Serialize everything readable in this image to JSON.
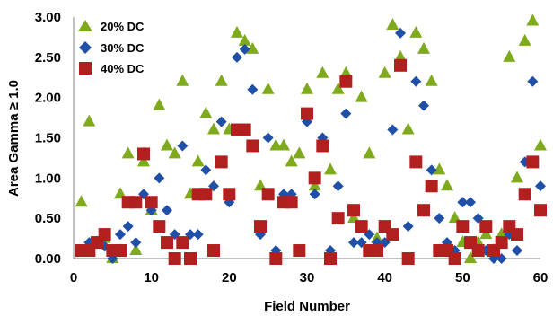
{
  "chart_data": {
    "type": "scatter",
    "xlabel": "Field Number",
    "ylabel": "Area Gamma ≥ 1.0",
    "xlim": [
      0,
      60
    ],
    "ylim": [
      0,
      3.0
    ],
    "x_ticks": [
      "0",
      "10",
      "20",
      "30",
      "40",
      "50",
      "60"
    ],
    "y_ticks": [
      "0.00",
      "0.50",
      "1.00",
      "1.50",
      "2.00",
      "2.50",
      "3.00"
    ],
    "grid": false,
    "legend_position": "top-left",
    "series": [
      {
        "name": "20% DC",
        "marker": "triangle",
        "color": "#7faa1e",
        "points": [
          [
            1,
            0.7
          ],
          [
            2,
            1.7
          ],
          [
            3,
            0.2
          ],
          [
            4,
            0.25
          ],
          [
            5,
            0.0
          ],
          [
            6,
            0.8
          ],
          [
            7,
            1.3
          ],
          [
            8,
            0.1
          ],
          [
            9,
            1.2
          ],
          [
            10,
            0.6
          ],
          [
            11,
            1.9
          ],
          [
            12,
            1.4
          ],
          [
            13,
            1.3
          ],
          [
            14,
            2.2
          ],
          [
            15,
            0.8
          ],
          [
            16,
            1.2
          ],
          [
            17,
            1.8
          ],
          [
            18,
            1.6
          ],
          [
            19,
            2.2
          ],
          [
            20,
            1.6
          ],
          [
            21,
            2.8
          ],
          [
            22,
            2.7
          ],
          [
            23,
            2.6
          ],
          [
            24,
            0.9
          ],
          [
            25,
            2.1
          ],
          [
            26,
            1.4
          ],
          [
            27,
            1.4
          ],
          [
            28,
            1.2
          ],
          [
            29,
            1.3
          ],
          [
            30,
            2.1
          ],
          [
            31,
            0.9
          ],
          [
            32,
            2.3
          ],
          [
            33,
            1.1
          ],
          [
            34,
            2.1
          ],
          [
            35,
            2.3
          ],
          [
            36,
            0.5
          ],
          [
            37,
            2.0
          ],
          [
            38,
            1.3
          ],
          [
            39,
            0.25
          ],
          [
            40,
            2.3
          ],
          [
            41,
            2.9
          ],
          [
            42,
            2.5
          ],
          [
            43,
            1.6
          ],
          [
            44,
            2.8
          ],
          [
            45,
            2.6
          ],
          [
            46,
            2.2
          ],
          [
            47,
            1.1
          ],
          [
            48,
            0.9
          ],
          [
            49,
            0.5
          ],
          [
            50,
            0.2
          ],
          [
            51,
            0.0
          ],
          [
            52,
            0.2
          ],
          [
            53,
            0.3
          ],
          [
            54,
            0.1
          ],
          [
            55,
            0.3
          ],
          [
            56,
            2.5
          ],
          [
            57,
            1.0
          ],
          [
            58,
            2.7
          ],
          [
            59,
            2.95
          ],
          [
            60,
            1.4
          ]
        ]
      },
      {
        "name": "30% DC",
        "marker": "diamond",
        "color": "#1f4fa6",
        "points": [
          [
            1,
            0.1
          ],
          [
            2,
            0.2
          ],
          [
            3,
            0.2
          ],
          [
            4,
            0.15
          ],
          [
            5,
            0.0
          ],
          [
            6,
            0.3
          ],
          [
            7,
            0.4
          ],
          [
            8,
            0.2
          ],
          [
            9,
            0.8
          ],
          [
            10,
            0.6
          ],
          [
            11,
            1.0
          ],
          [
            12,
            0.6
          ],
          [
            13,
            0.3
          ],
          [
            14,
            1.4
          ],
          [
            15,
            0.3
          ],
          [
            16,
            0.3
          ],
          [
            17,
            1.1
          ],
          [
            18,
            0.9
          ],
          [
            19,
            1.7
          ],
          [
            20,
            0.7
          ],
          [
            21,
            2.5
          ],
          [
            22,
            2.6
          ],
          [
            23,
            2.1
          ],
          [
            24,
            0.3
          ],
          [
            25,
            1.5
          ],
          [
            26,
            0.1
          ],
          [
            27,
            0.8
          ],
          [
            28,
            0.8
          ],
          [
            29,
            0.1
          ],
          [
            30,
            1.7
          ],
          [
            31,
            0.8
          ],
          [
            32,
            1.5
          ],
          [
            33,
            0.1
          ],
          [
            34,
            0.9
          ],
          [
            35,
            1.8
          ],
          [
            36,
            0.2
          ],
          [
            37,
            0.2
          ],
          [
            38,
            0.3
          ],
          [
            39,
            0.2
          ],
          [
            40,
            0.2
          ],
          [
            41,
            1.6
          ],
          [
            42,
            2.8
          ],
          [
            43,
            0.4
          ],
          [
            44,
            2.2
          ],
          [
            45,
            1.9
          ],
          [
            46,
            1.1
          ],
          [
            47,
            0.5
          ],
          [
            48,
            0.2
          ],
          [
            49,
            0.1
          ],
          [
            50,
            0.7
          ],
          [
            51,
            0.7
          ],
          [
            52,
            0.5
          ],
          [
            53,
            0.1
          ],
          [
            54,
            0.0
          ],
          [
            55,
            0.0
          ],
          [
            56,
            0.3
          ],
          [
            57,
            0.1
          ],
          [
            58,
            1.2
          ],
          [
            59,
            2.2
          ],
          [
            60,
            0.9
          ]
        ]
      },
      {
        "name": "40% DC",
        "marker": "square",
        "color": "#b21f1f",
        "points": [
          [
            1,
            0.1
          ],
          [
            2,
            0.1
          ],
          [
            3,
            0.2
          ],
          [
            4,
            0.3
          ],
          [
            5,
            0.1
          ],
          [
            6,
            0.1
          ],
          [
            7,
            0.7
          ],
          [
            8,
            0.7
          ],
          [
            9,
            1.3
          ],
          [
            10,
            0.7
          ],
          [
            11,
            0.4
          ],
          [
            12,
            0.2
          ],
          [
            13,
            0.0
          ],
          [
            14,
            0.2
          ],
          [
            15,
            0.0
          ],
          [
            16,
            0.8
          ],
          [
            17,
            0.8
          ],
          [
            18,
            0.1
          ],
          [
            19,
            1.2
          ],
          [
            20,
            0.8
          ],
          [
            21,
            1.6
          ],
          [
            22,
            1.6
          ],
          [
            23,
            1.4
          ],
          [
            24,
            0.4
          ],
          [
            25,
            0.8
          ],
          [
            26,
            0.0
          ],
          [
            27,
            0.7
          ],
          [
            28,
            0.7
          ],
          [
            29,
            0.1
          ],
          [
            30,
            1.8
          ],
          [
            31,
            1.0
          ],
          [
            32,
            1.4
          ],
          [
            33,
            0.0
          ],
          [
            34,
            0.5
          ],
          [
            35,
            2.2
          ],
          [
            36,
            0.6
          ],
          [
            37,
            0.4
          ],
          [
            38,
            0.1
          ],
          [
            39,
            0.1
          ],
          [
            40,
            0.4
          ],
          [
            41,
            0.3
          ],
          [
            42,
            2.4
          ],
          [
            43,
            0.0
          ],
          [
            44,
            1.2
          ],
          [
            45,
            0.6
          ],
          [
            46,
            0.9
          ],
          [
            47,
            0.1
          ],
          [
            48,
            0.1
          ],
          [
            49,
            0.0
          ],
          [
            50,
            0.4
          ],
          [
            51,
            0.2
          ],
          [
            52,
            0.1
          ],
          [
            53,
            0.4
          ],
          [
            54,
            0.1
          ],
          [
            55,
            0.2
          ],
          [
            56,
            0.4
          ],
          [
            57,
            0.3
          ],
          [
            58,
            0.8
          ],
          [
            59,
            1.2
          ],
          [
            60,
            0.6
          ]
        ]
      }
    ]
  }
}
